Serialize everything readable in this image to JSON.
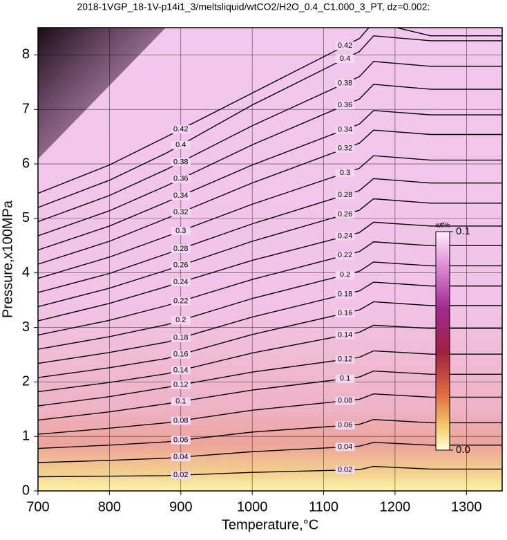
{
  "chart_data": {
    "type": "contour",
    "title": "2018-1VGP_18-1V-p14i1_3/meltsliquid/wtCO2/H2O_0.4_C1.000_3_PT, dz=0.002:",
    "x_label": "Temperature,°C",
    "y_label": "Pressure,x100MPa",
    "xlim": [
      700,
      1350
    ],
    "ylim": [
      0,
      8.5
    ],
    "xticks": [
      700,
      800,
      900,
      1000,
      1100,
      1200,
      1300
    ],
    "yticks": [
      0,
      1,
      2,
      3,
      4,
      5,
      6,
      7,
      8
    ],
    "grid": true,
    "line_color": "#000000",
    "x": [
      700,
      800,
      880,
      1000,
      1150,
      1170,
      1250,
      1350
    ],
    "contours": [
      {
        "level": 0.02,
        "values": [
          0.26,
          0.27,
          0.28,
          0.34,
          0.39,
          0.45,
          0.4,
          0.4
        ]
      },
      {
        "level": 0.04,
        "values": [
          0.52,
          0.56,
          0.6,
          0.72,
          0.82,
          0.89,
          0.84,
          0.84
        ]
      },
      {
        "level": 0.06,
        "values": [
          0.78,
          0.84,
          0.9,
          1.08,
          1.22,
          1.31,
          1.25,
          1.25
        ]
      },
      {
        "level": 0.08,
        "values": [
          1.04,
          1.15,
          1.25,
          1.48,
          1.68,
          1.78,
          1.72,
          1.72
        ]
      },
      {
        "level": 0.1,
        "values": [
          1.3,
          1.45,
          1.6,
          1.85,
          2.09,
          2.2,
          2.14,
          2.14
        ]
      },
      {
        "level": 0.12,
        "values": [
          1.56,
          1.73,
          1.9,
          2.18,
          2.45,
          2.57,
          2.51,
          2.51
        ]
      },
      {
        "level": 0.14,
        "values": [
          1.82,
          1.99,
          2.15,
          2.53,
          2.91,
          3.04,
          2.98,
          2.98
        ]
      },
      {
        "level": 0.16,
        "values": [
          2.08,
          2.26,
          2.43,
          2.87,
          3.32,
          3.47,
          3.4,
          3.4
        ]
      },
      {
        "level": 0.18,
        "values": [
          2.34,
          2.54,
          2.73,
          3.19,
          3.67,
          3.83,
          3.76,
          3.76
        ]
      },
      {
        "level": 0.2,
        "values": [
          2.6,
          2.83,
          3.05,
          3.53,
          4.03,
          4.2,
          4.13,
          4.13
        ]
      },
      {
        "level": 0.22,
        "values": [
          2.86,
          3.13,
          3.4,
          3.88,
          4.39,
          4.57,
          4.5,
          4.5
        ]
      },
      {
        "level": 0.24,
        "values": [
          3.12,
          3.44,
          3.75,
          4.23,
          4.74,
          4.93,
          4.86,
          4.86
        ]
      },
      {
        "level": 0.26,
        "values": [
          3.38,
          3.72,
          4.05,
          4.58,
          5.15,
          5.36,
          5.28,
          5.28
        ]
      },
      {
        "level": 0.28,
        "values": [
          3.64,
          3.99,
          4.35,
          4.9,
          5.51,
          5.73,
          5.65,
          5.65
        ]
      },
      {
        "level": 0.3,
        "values": [
          3.9,
          4.29,
          4.67,
          5.26,
          5.92,
          6.15,
          6.07,
          6.07
        ]
      },
      {
        "level": 0.32,
        "values": [
          4.16,
          4.58,
          5.0,
          5.65,
          6.38,
          6.62,
          6.54,
          6.54
        ]
      },
      {
        "level": 0.34,
        "values": [
          4.42,
          4.86,
          5.3,
          5.98,
          6.73,
          6.98,
          6.9,
          6.9
        ]
      },
      {
        "level": 0.36,
        "values": [
          4.68,
          5.14,
          5.6,
          6.35,
          7.19,
          7.46,
          7.37,
          7.37
        ]
      },
      {
        "level": 0.38,
        "values": [
          4.94,
          5.42,
          5.9,
          6.7,
          7.6,
          7.88,
          7.79,
          7.79
        ]
      },
      {
        "level": 0.4,
        "values": [
          5.2,
          5.7,
          6.2,
          7.08,
          8.06,
          8.35,
          8.26,
          8.26
        ]
      },
      {
        "level": 0.42,
        "values": [
          5.46,
          5.98,
          6.5,
          7.3,
          8.3,
          8.6,
          8.35,
          8.35
        ]
      }
    ],
    "colorbar": {
      "label": "wt%",
      "range": [
        0,
        0.1
      ],
      "ticks": [
        {
          "value": 0,
          "label": "0.0"
        },
        0.1
      ]
    }
  }
}
